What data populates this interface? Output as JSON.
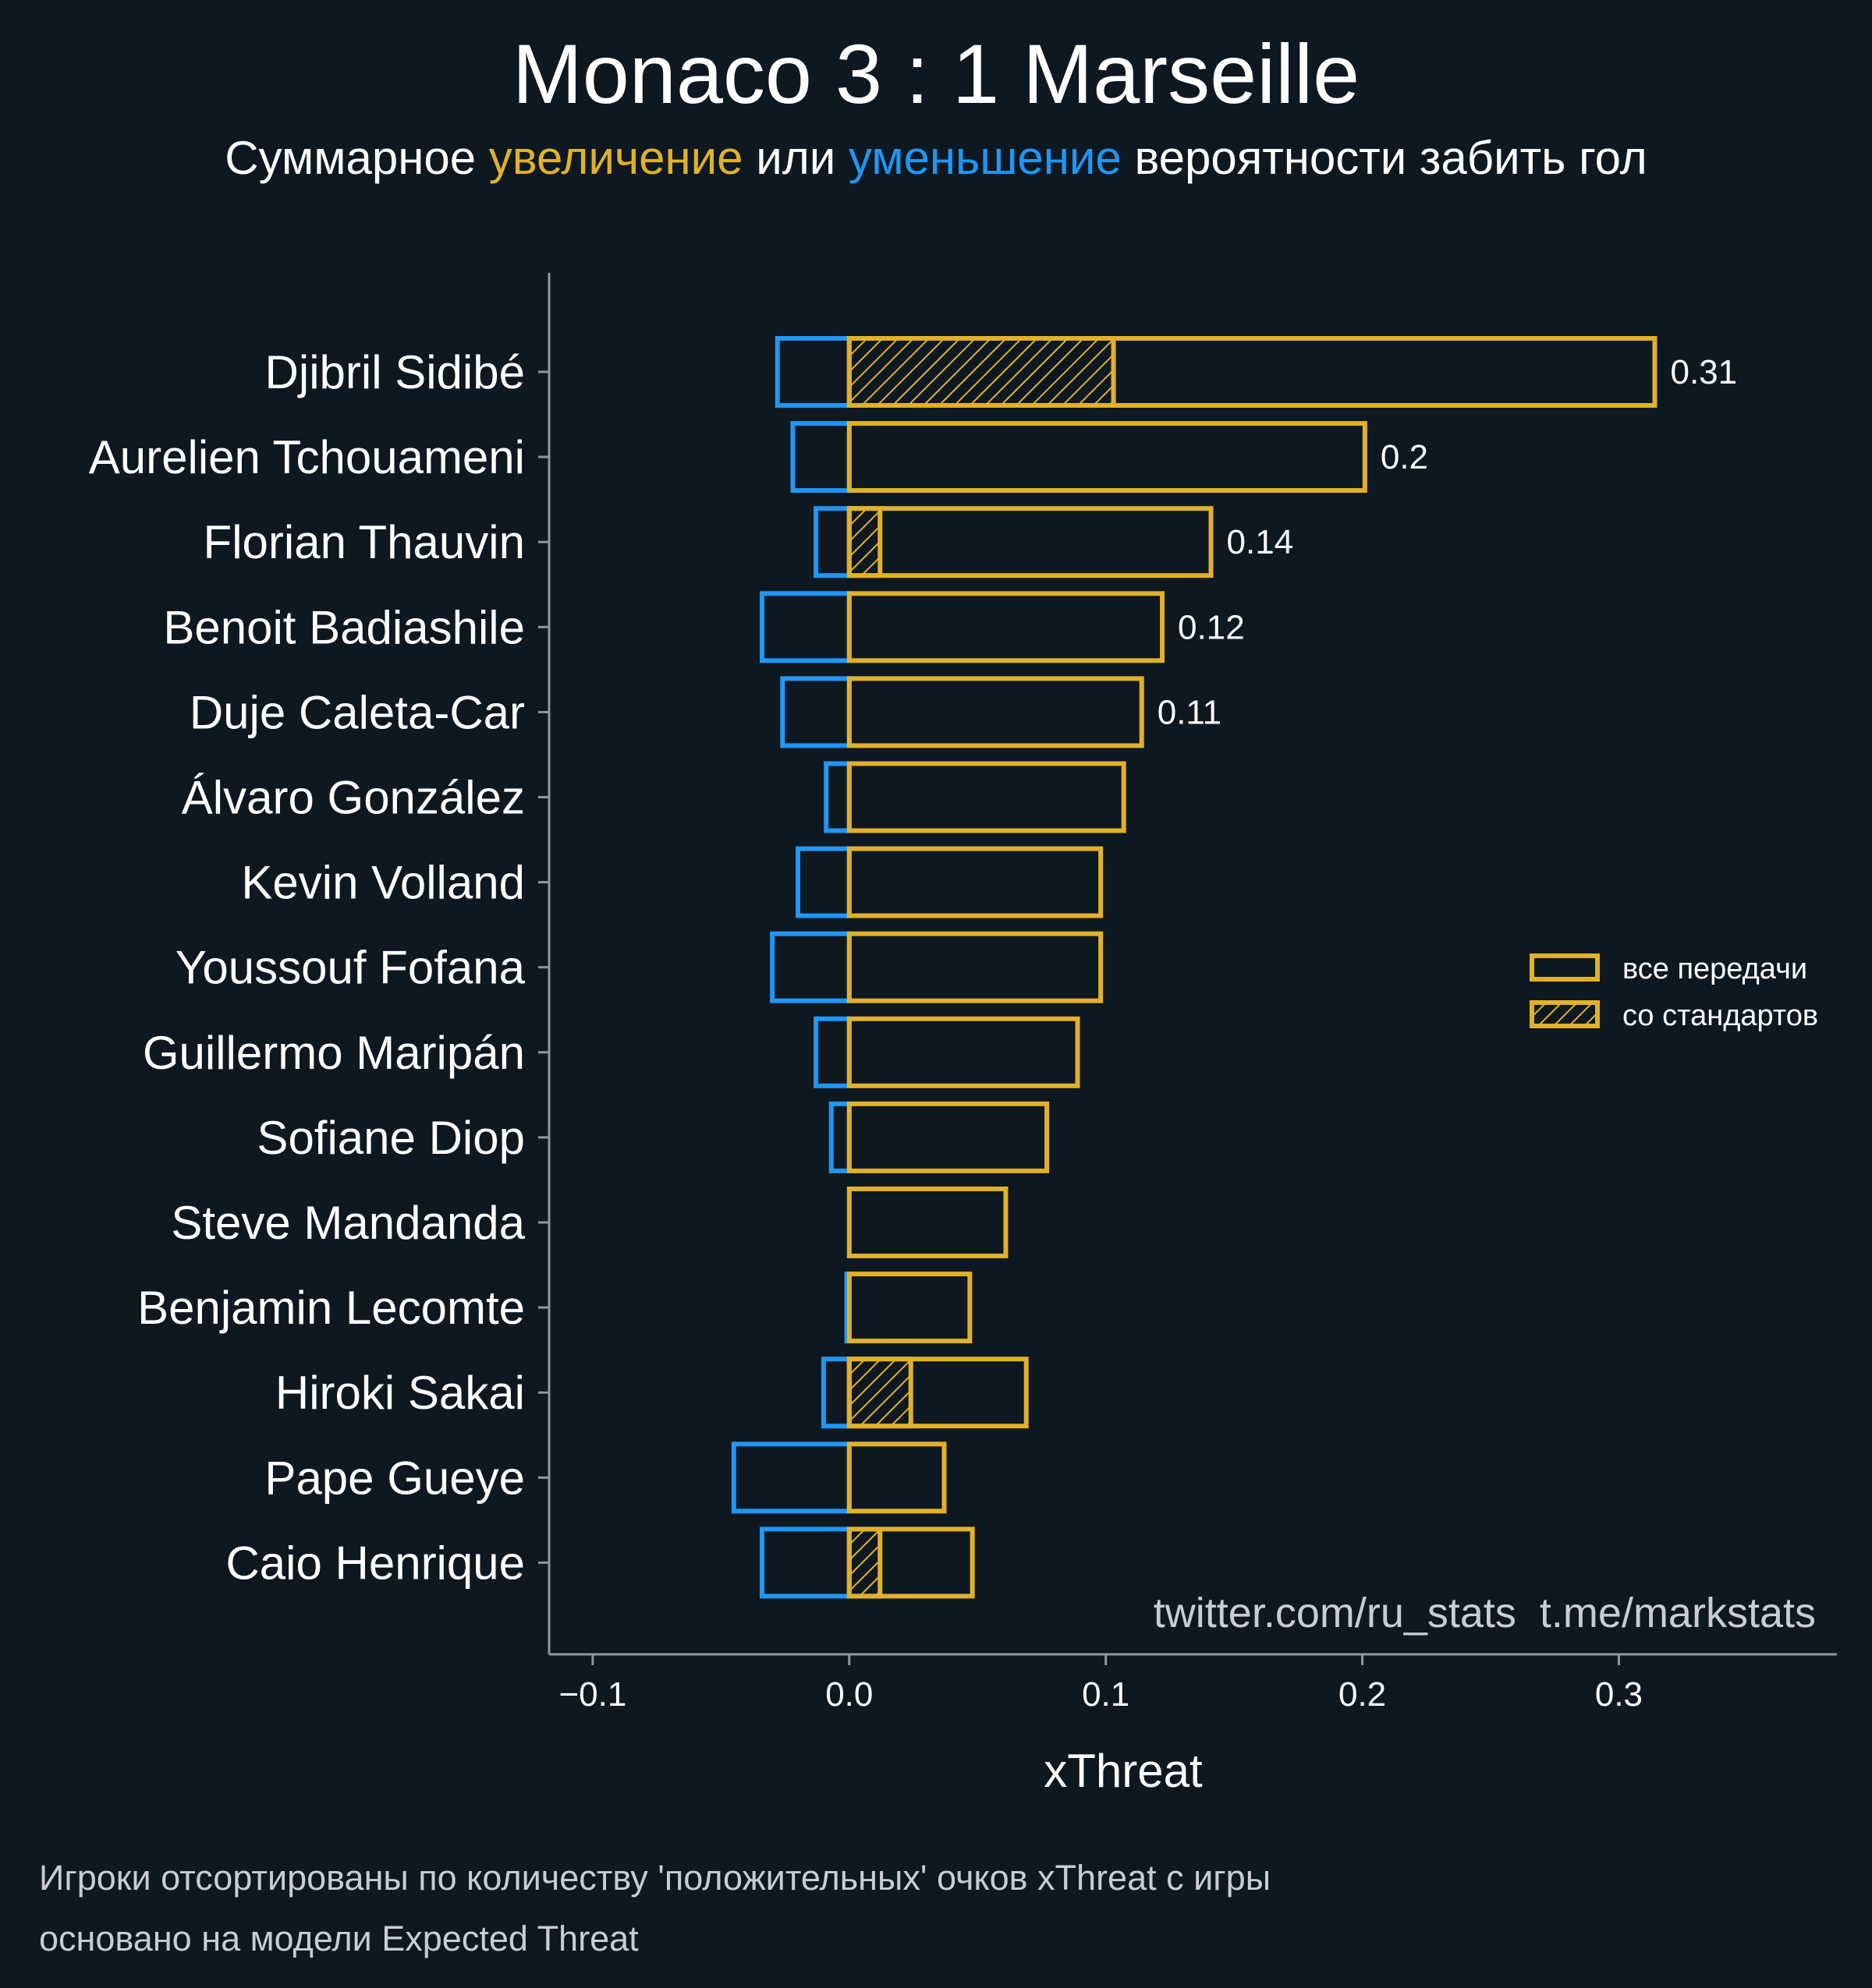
{
  "title": "Monaco 3 : 1 Marseille",
  "subtitle": {
    "prefix": "Суммарное",
    "positive_word": "увеличение",
    "middle": "или",
    "negative_word": "уменьшение",
    "suffix": "вероятности забить гол"
  },
  "watermark": "twitter.com/ru_stats  t.me/markstats",
  "footnote": [
    "Игроки отсортированы по количеству 'положительных' очков xThreat с игры",
    "основано на модели Expected Threat"
  ],
  "colors": {
    "background": "#0e1821",
    "positive": "#e1b12c",
    "negative": "#2196f3",
    "axis": "#8a9aa3",
    "text": "#ffffff"
  },
  "chart_data": {
    "type": "bar",
    "orientation": "horizontal",
    "xlabel": "xThreat",
    "xlim": [
      -0.117,
      0.385
    ],
    "xticks": [
      -0.1,
      0.0,
      0.1,
      0.2,
      0.3
    ],
    "xtick_labels": [
      "−0.1",
      "0.0",
      "0.1",
      "0.2",
      "0.3"
    ],
    "legend": {
      "position": "right",
      "entries": [
        {
          "label": "все передачи",
          "style": "outline"
        },
        {
          "label": "со стандартов",
          "style": "hatched"
        }
      ]
    },
    "players": [
      {
        "name": "Djibril Sidibé",
        "positive": 0.314,
        "negative": -0.028,
        "set_piece": 0.103,
        "label": "0.31"
      },
      {
        "name": "Aurelien Tchouameni",
        "positive": 0.201,
        "negative": -0.022,
        "set_piece": 0.0,
        "label": "0.2"
      },
      {
        "name": "Florian Thauvin",
        "positive": 0.141,
        "negative": -0.013,
        "set_piece": 0.012,
        "label": "0.14"
      },
      {
        "name": "Benoit Badiashile",
        "positive": 0.122,
        "negative": -0.034,
        "set_piece": 0.0,
        "label": "0.12"
      },
      {
        "name": "Duje Caleta-Car",
        "positive": 0.114,
        "negative": -0.026,
        "set_piece": 0.0,
        "label": "0.11"
      },
      {
        "name": "Álvaro González",
        "positive": 0.107,
        "negative": -0.009,
        "set_piece": 0.0,
        "label": ""
      },
      {
        "name": "Kevin Volland",
        "positive": 0.098,
        "negative": -0.02,
        "set_piece": 0.0,
        "label": ""
      },
      {
        "name": "Youssouf Fofana",
        "positive": 0.098,
        "negative": -0.03,
        "set_piece": 0.0,
        "label": ""
      },
      {
        "name": "Guillermo Maripán",
        "positive": 0.089,
        "negative": -0.013,
        "set_piece": 0.0,
        "label": ""
      },
      {
        "name": "Sofiane Diop",
        "positive": 0.077,
        "negative": -0.007,
        "set_piece": 0.0,
        "label": ""
      },
      {
        "name": "Steve Mandanda",
        "positive": 0.061,
        "negative": 0.0,
        "set_piece": 0.0,
        "label": ""
      },
      {
        "name": "Benjamin Lecomte",
        "positive": 0.047,
        "negative": -0.001,
        "set_piece": 0.0,
        "label": ""
      },
      {
        "name": "Hiroki Sakai",
        "positive": 0.069,
        "negative": -0.01,
        "set_piece": 0.024,
        "label": ""
      },
      {
        "name": "Pape Gueye",
        "positive": 0.037,
        "negative": -0.045,
        "set_piece": 0.0,
        "label": ""
      },
      {
        "name": "Caio Henrique",
        "positive": 0.048,
        "negative": -0.034,
        "set_piece": 0.012,
        "label": ""
      }
    ]
  }
}
